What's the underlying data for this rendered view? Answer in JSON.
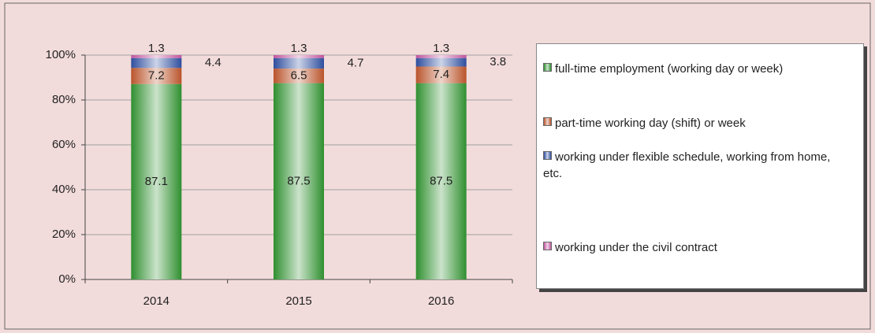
{
  "chart_data": {
    "type": "stacked_bar",
    "categories": [
      "2014",
      "2015",
      "2016"
    ],
    "series": [
      {
        "name": "full-time employment (working day or week)",
        "color": "#2f8f2f",
        "values": [
          87.1,
          87.5,
          87.5
        ]
      },
      {
        "name": "part-time working day (shift) or week",
        "color": "#b9542b",
        "values": [
          7.2,
          6.5,
          7.4
        ]
      },
      {
        "name": "working under flexible schedule, working from home, etc.",
        "color": "#2e4e9e",
        "values": [
          4.4,
          4.7,
          3.8
        ]
      },
      {
        "name": "working under the civil contract",
        "color": "#c1559f",
        "values": [
          1.3,
          1.3,
          1.3
        ]
      }
    ],
    "ylim": [
      0,
      100
    ],
    "yticks": [
      {
        "value": 0,
        "label": "0%"
      },
      {
        "value": 20,
        "label": "20%"
      },
      {
        "value": 40,
        "label": "40%"
      },
      {
        "value": 60,
        "label": "60%"
      },
      {
        "value": 80,
        "label": "80%"
      },
      {
        "value": 100,
        "label": "100%"
      }
    ],
    "grid": true,
    "legend": "right"
  }
}
